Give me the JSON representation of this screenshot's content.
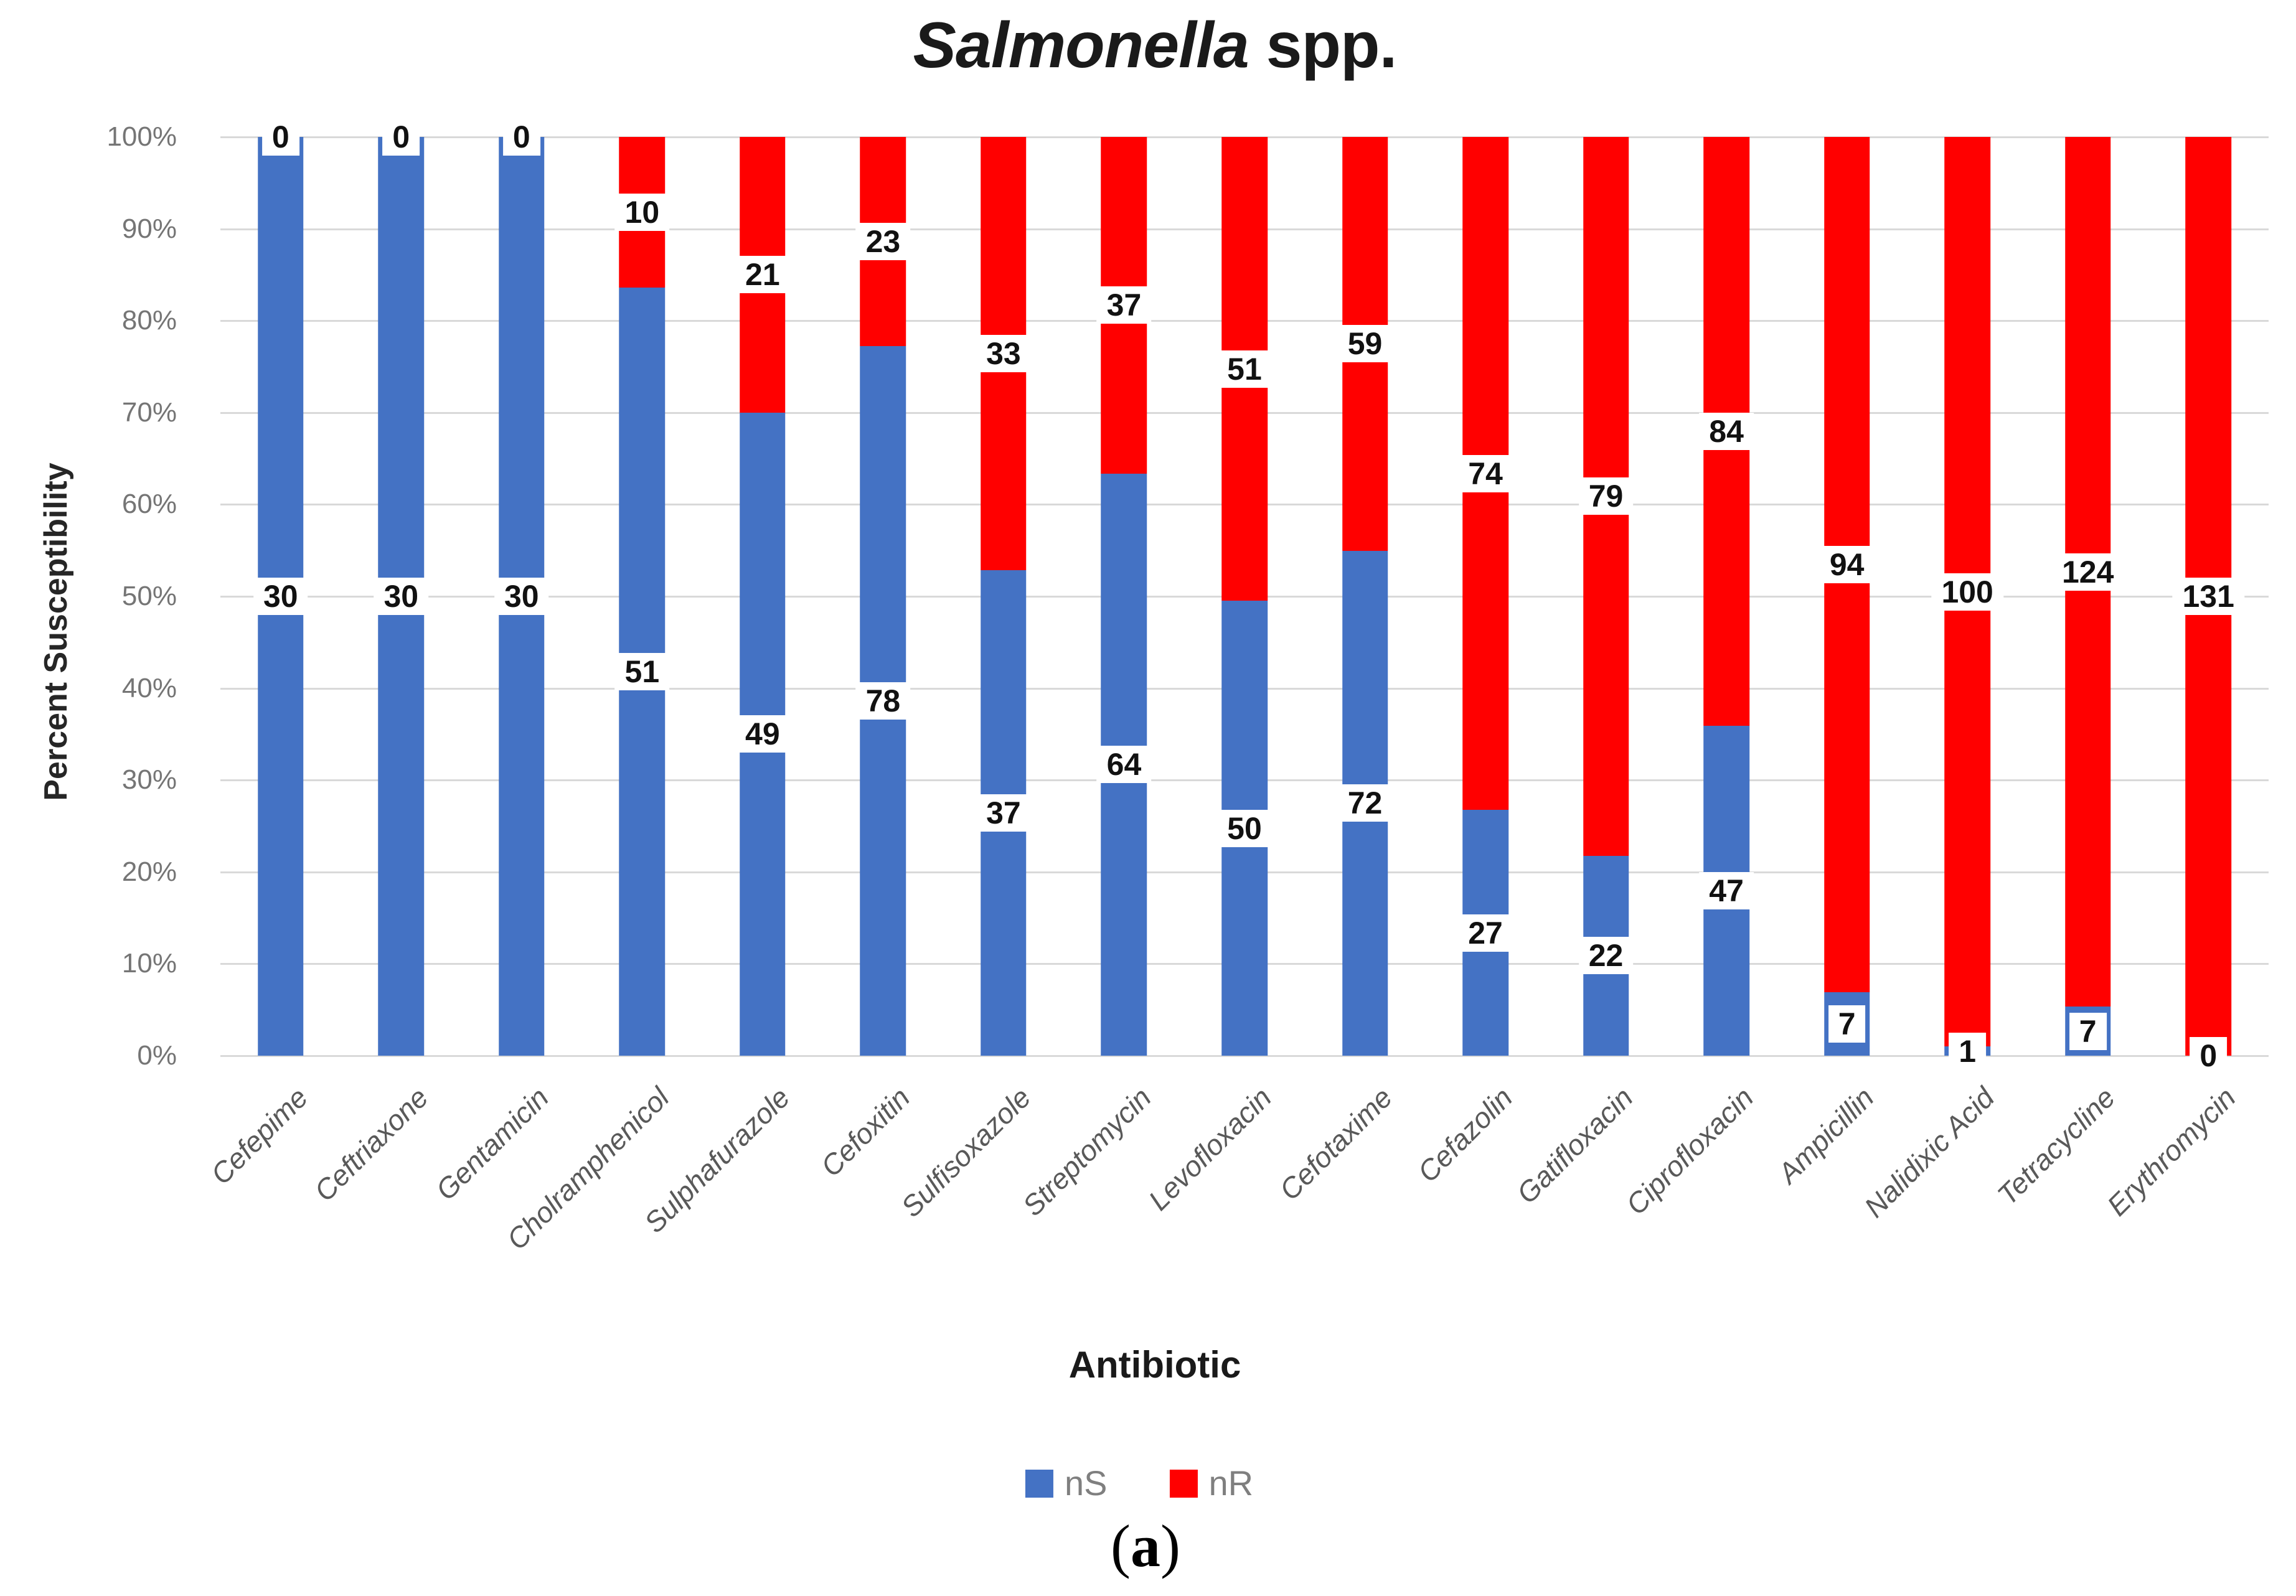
{
  "title": {
    "italic": "Salmonella",
    "rest": " spp."
  },
  "y_axis": {
    "title": "Percent Susceptibility",
    "tick_labels": [
      "0%",
      "10%",
      "20%",
      "30%",
      "40%",
      "50%",
      "60%",
      "70%",
      "80%",
      "90%",
      "100%"
    ]
  },
  "x_axis": {
    "title": "Antibiotic"
  },
  "legend": {
    "items": [
      {
        "label": "nS",
        "color": "#4472C4"
      },
      {
        "label": "nR",
        "color": "#FF0000"
      }
    ]
  },
  "caption": {
    "open": "(",
    "letter": "a",
    "close": ")"
  },
  "colors": {
    "ns_blue": "#4472C4",
    "nr_red": "#FF0000",
    "gridline": "#D9D9D9",
    "y_tick_text": "#757575",
    "x_tick_text": "#595959",
    "legend_text": "#7F7F7F",
    "data_label_text": "#111111",
    "title_text": "#1A1A1A"
  },
  "chart_data": {
    "type": "bar",
    "variant": "100-percent-stacked-column",
    "title": "Salmonella spp.",
    "xlabel": "Antibiotic",
    "ylabel": "Percent Susceptibility",
    "ylim": [
      0,
      100
    ],
    "y_tick_step": 10,
    "grid": true,
    "legend_position": "bottom",
    "categories": [
      "Cefepime",
      "Ceftriaxone",
      "Gentamicin",
      "Cholramphenicol",
      "Sulphafurazole",
      "Cefoxitin",
      "Sulfisoxazole",
      "Streptomycin",
      "Levofloxacin",
      "Cefotaxime",
      "Cefazolin",
      "Gatifloxacin",
      "Ciprofloxacin",
      "Ampicillin",
      "Nalidixic Acid",
      "Tetracycline",
      "Erythromycin"
    ],
    "series": [
      {
        "name": "nS",
        "color": "#4472C4",
        "values": [
          30,
          30,
          30,
          51,
          49,
          78,
          37,
          64,
          50,
          72,
          27,
          22,
          47,
          7,
          1,
          7,
          0
        ]
      },
      {
        "name": "nR",
        "color": "#FF0000",
        "values": [
          0,
          0,
          0,
          10,
          21,
          23,
          33,
          37,
          51,
          59,
          74,
          79,
          84,
          94,
          100,
          124,
          131
        ]
      }
    ]
  }
}
